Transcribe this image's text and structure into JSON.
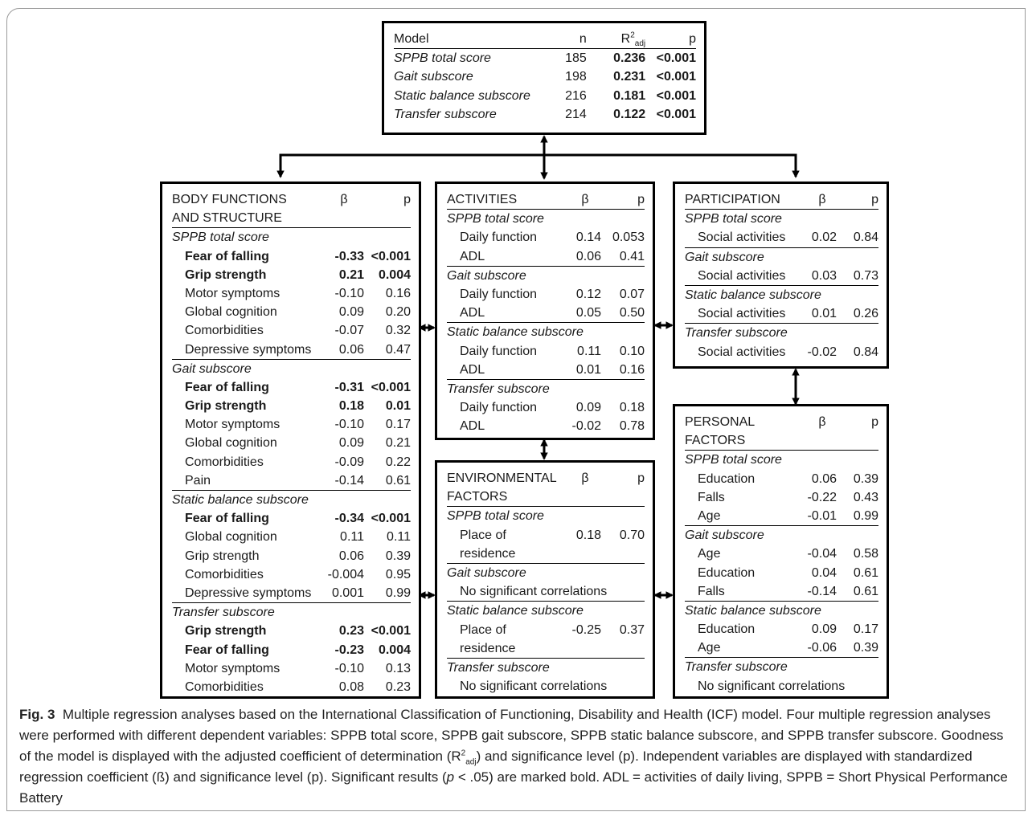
{
  "model": {
    "header": {
      "model": "Model",
      "n": "n",
      "r2_base": "R",
      "r2_sup": "2",
      "r2_sub": "adj",
      "p": "p"
    },
    "rows": [
      {
        "label": "SPPB total score",
        "n": "185",
        "r2": "0.236",
        "p": "<0.001"
      },
      {
        "label": "Gait subscore",
        "n": "198",
        "r2": "0.231",
        "p": "<0.001"
      },
      {
        "label": "Static balance subscore",
        "n": "216",
        "r2": "0.181",
        "p": "<0.001"
      },
      {
        "label": "Transfer subscore",
        "n": "214",
        "r2": "0.122",
        "p": "<0.001"
      }
    ]
  },
  "body": {
    "title1": "BODY FUNCTIONS",
    "title2": "AND STRUCTURE",
    "beta": "β",
    "p": "p",
    "groups": [
      {
        "sub": "SPPB total score",
        "items": [
          {
            "label": "Fear of falling",
            "beta": "-0.33",
            "p": "<0.001",
            "bold": true
          },
          {
            "label": "Grip strength",
            "beta": "0.21",
            "p": "0.004",
            "bold": true
          },
          {
            "label": "Motor symptoms",
            "beta": "-0.10",
            "p": "0.16",
            "bold": false
          },
          {
            "label": "Global cognition",
            "beta": "0.09",
            "p": "0.20",
            "bold": false
          },
          {
            "label": "Comorbidities",
            "beta": "-0.07",
            "p": "0.32",
            "bold": false
          },
          {
            "label": "Depressive symptoms",
            "beta": "0.06",
            "p": "0.47",
            "bold": false
          }
        ]
      },
      {
        "sub": "Gait subscore",
        "items": [
          {
            "label": "Fear of falling",
            "beta": "-0.31",
            "p": "<0.001",
            "bold": true
          },
          {
            "label": "Grip strength",
            "beta": "0.18",
            "p": "0.01",
            "bold": true
          },
          {
            "label": "Motor symptoms",
            "beta": "-0.10",
            "p": "0.17",
            "bold": false
          },
          {
            "label": "Global cognition",
            "beta": "0.09",
            "p": "0.21",
            "bold": false
          },
          {
            "label": "Comorbidities",
            "beta": "-0.09",
            "p": "0.22",
            "bold": false
          },
          {
            "label": "Pain",
            "beta": "-0.14",
            "p": "0.61",
            "bold": false
          }
        ]
      },
      {
        "sub": "Static balance subscore",
        "items": [
          {
            "label": "Fear of falling",
            "beta": "-0.34",
            "p": "<0.001",
            "bold": true
          },
          {
            "label": "Global cognition",
            "beta": "0.11",
            "p": "0.11",
            "bold": false
          },
          {
            "label": "Grip strength",
            "beta": "0.06",
            "p": "0.39",
            "bold": false
          },
          {
            "label": "Comorbidities",
            "beta": "-0.004",
            "p": "0.95",
            "bold": false
          },
          {
            "label": "Depressive symptoms",
            "beta": "0.001",
            "p": "0.99",
            "bold": false
          }
        ]
      },
      {
        "sub": "Transfer subscore",
        "items": [
          {
            "label": "Grip strength",
            "beta": "0.23",
            "p": "<0.001",
            "bold": true
          },
          {
            "label": "Fear of falling",
            "beta": "-0.23",
            "p": "0.004",
            "bold": true
          },
          {
            "label": "Motor symptoms",
            "beta": "-0.10",
            "p": "0.13",
            "bold": false
          },
          {
            "label": "Comorbidities",
            "beta": "0.08",
            "p": "0.23",
            "bold": false
          }
        ]
      }
    ]
  },
  "activities": {
    "title": "ACTIVITIES",
    "beta": "β",
    "p": "p",
    "groups": [
      {
        "sub": "SPPB total score",
        "items": [
          {
            "label": "Daily function",
            "beta": "0.14",
            "p": "0.053"
          },
          {
            "label": "ADL",
            "beta": "0.06",
            "p": "0.41"
          }
        ]
      },
      {
        "sub": "Gait subscore",
        "items": [
          {
            "label": "Daily function",
            "beta": "0.12",
            "p": "0.07"
          },
          {
            "label": "ADL",
            "beta": "0.05",
            "p": "0.50"
          }
        ]
      },
      {
        "sub": "Static balance subscore",
        "items": [
          {
            "label": "Daily function",
            "beta": "0.11",
            "p": "0.10"
          },
          {
            "label": "ADL",
            "beta": "0.01",
            "p": "0.16"
          }
        ]
      },
      {
        "sub": "Transfer subscore",
        "items": [
          {
            "label": "Daily function",
            "beta": "0.09",
            "p": "0.18"
          },
          {
            "label": "ADL",
            "beta": "-0.02",
            "p": "0.78"
          }
        ]
      }
    ]
  },
  "participation": {
    "title": "PARTICIPATION",
    "beta": "β",
    "p": "p",
    "groups": [
      {
        "sub": "SPPB total score",
        "items": [
          {
            "label": "Social activities",
            "beta": "0.02",
            "p": "0.84"
          }
        ]
      },
      {
        "sub": "Gait subscore",
        "items": [
          {
            "label": "Social activities",
            "beta": "0.03",
            "p": "0.73"
          }
        ]
      },
      {
        "sub": "Static balance subscore",
        "items": [
          {
            "label": "Social activities",
            "beta": "0.01",
            "p": "0.26"
          }
        ]
      },
      {
        "sub": "Transfer subscore",
        "items": [
          {
            "label": "Social activities",
            "beta": "-0.02",
            "p": "0.84"
          }
        ]
      }
    ]
  },
  "environmental": {
    "title1": "ENVIRONMENTAL",
    "title2": "FACTORS",
    "beta": "β",
    "p": "p",
    "groups": [
      {
        "sub": "SPPB total score",
        "label1": "Place of",
        "label2": "residence",
        "beta": "0.18",
        "p": "0.70"
      },
      {
        "sub": "Gait subscore",
        "nosig": "No significant correlations"
      },
      {
        "sub": "Static balance subscore",
        "label1": "Place of",
        "label2": "residence",
        "beta": "-0.25",
        "p": "0.37"
      },
      {
        "sub": "Transfer subscore",
        "nosig": "No significant correlations"
      }
    ]
  },
  "personal": {
    "title1": "PERSONAL",
    "title2": "FACTORS",
    "beta": "β",
    "p": "p",
    "groups": [
      {
        "sub": "SPPB total score",
        "items": [
          {
            "label": "Education",
            "beta": "0.06",
            "p": "0.39"
          },
          {
            "label": "Falls",
            "beta": "-0.22",
            "p": "0.43"
          },
          {
            "label": "Age",
            "beta": "-0.01",
            "p": "0.99"
          }
        ]
      },
      {
        "sub": "Gait subscore",
        "items": [
          {
            "label": "Age",
            "beta": "-0.04",
            "p": "0.58"
          },
          {
            "label": "Education",
            "beta": "0.04",
            "p": "0.61"
          },
          {
            "label": "Falls",
            "beta": "-0.14",
            "p": "0.61"
          }
        ]
      },
      {
        "sub": "Static balance subscore",
        "items": [
          {
            "label": "Education",
            "beta": "0.09",
            "p": "0.17"
          },
          {
            "label": "Age",
            "beta": "-0.06",
            "p": "0.39"
          }
        ]
      },
      {
        "sub": "Transfer subscore",
        "nosig": "No significant correlations"
      }
    ]
  },
  "caption": {
    "fig": "Fig. 3",
    "p1": "Multiple regression analyses based on the International Classification of Functioning, Disability and Health (ICF) model. Four multiple regression analyses were performed with different dependent variables: SPPB total score, SPPB gait subscore, SPPB static balance subscore, and SPPB transfer subscore. Goodness of the model is displayed with the adjusted coefficient of determination (R",
    "sup": "2",
    "sub": "adj",
    "p2": ") and significance level (p). Independent variables are displayed with standardized regression coefficient (ß) and significance level (p). Significant results (",
    "pi": "p",
    "p3": " < .05) are marked bold. ADL = activities of daily living, SPPB = Short Physical Performance Battery"
  }
}
